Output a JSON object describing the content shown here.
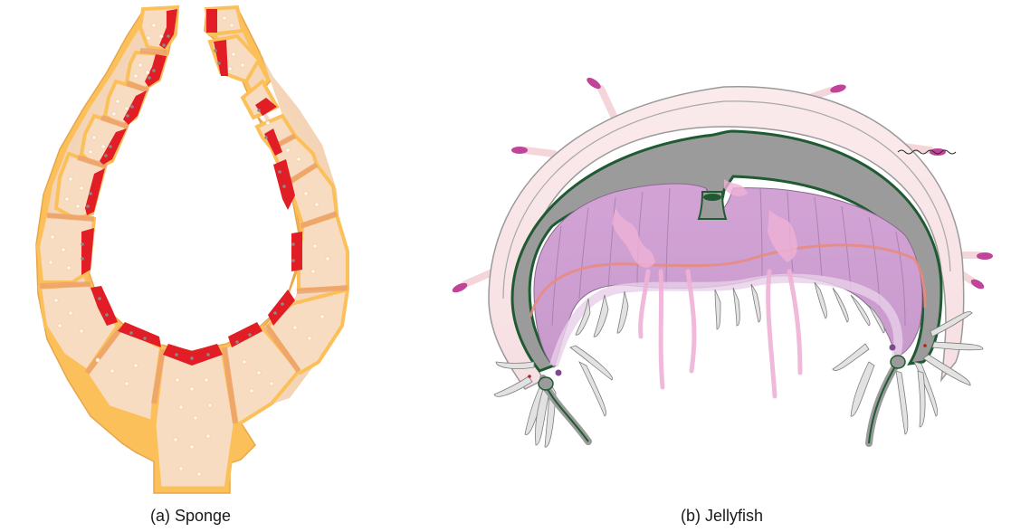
{
  "panels": [
    {
      "id": "sponge",
      "caption": "(a) Sponge"
    },
    {
      "id": "jellyfish",
      "caption": "(b) Jellyfish"
    }
  ],
  "colors": {
    "sponge_outer": "#fcc05a",
    "sponge_body": "#f7dcc3",
    "sponge_divider": "#eb9f6f",
    "sponge_lining": "#e11d25",
    "sponge_pore": "#fff7ee",
    "jelly_bell": "#f9e4e6",
    "jelly_bell_edge": "#9a9a9a",
    "jelly_gut": "#9b9b9b",
    "jelly_gut_line": "#1f5a32",
    "jelly_purple": "#d5a9d9",
    "jelly_pink": "#efb2d6",
    "jelly_tentacle": "#e2e2e2",
    "jelly_canal": "#e98a7c",
    "jelly_tip": "#c0449a",
    "jelly_dot": "#7a4c8b"
  }
}
